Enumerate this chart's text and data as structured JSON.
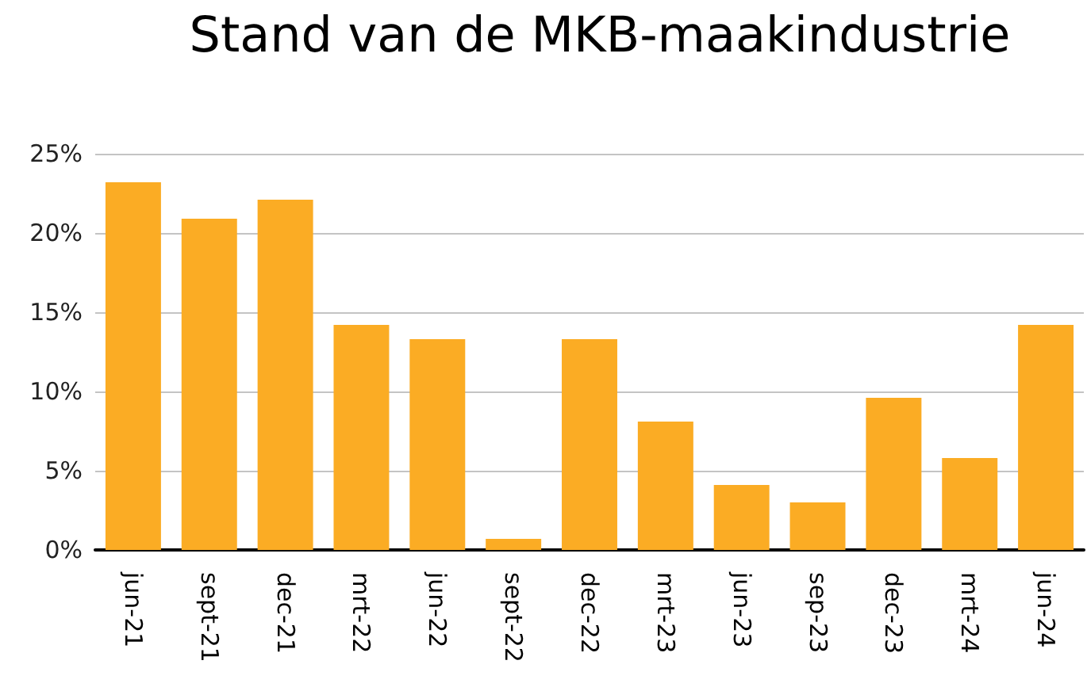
{
  "chart_data": {
    "type": "bar",
    "title": "Stand van de MKB-maakindustrie",
    "categories": [
      "jun-21",
      "sept-21",
      "dec-21",
      "mrt-22",
      "jun-22",
      "sept-22",
      "dec-22",
      "mrt-23",
      "jun-23",
      "sep-23",
      "dec-23",
      "mrt-24",
      "jun-24"
    ],
    "values": [
      23.2,
      20.9,
      22.1,
      14.2,
      13.3,
      0.7,
      13.3,
      8.1,
      4.1,
      3.0,
      9.6,
      5.8,
      14.2
    ],
    "color": "#fbac24",
    "ylim": [
      0,
      25
    ],
    "yticks": [
      {
        "value": 0,
        "label": "0%"
      },
      {
        "value": 5,
        "label": "5%"
      },
      {
        "value": 10,
        "label": "10%"
      },
      {
        "value": 15,
        "label": "15%"
      },
      {
        "value": 20,
        "label": "20%"
      },
      {
        "value": 25,
        "label": "25%"
      }
    ],
    "grid": "y"
  }
}
